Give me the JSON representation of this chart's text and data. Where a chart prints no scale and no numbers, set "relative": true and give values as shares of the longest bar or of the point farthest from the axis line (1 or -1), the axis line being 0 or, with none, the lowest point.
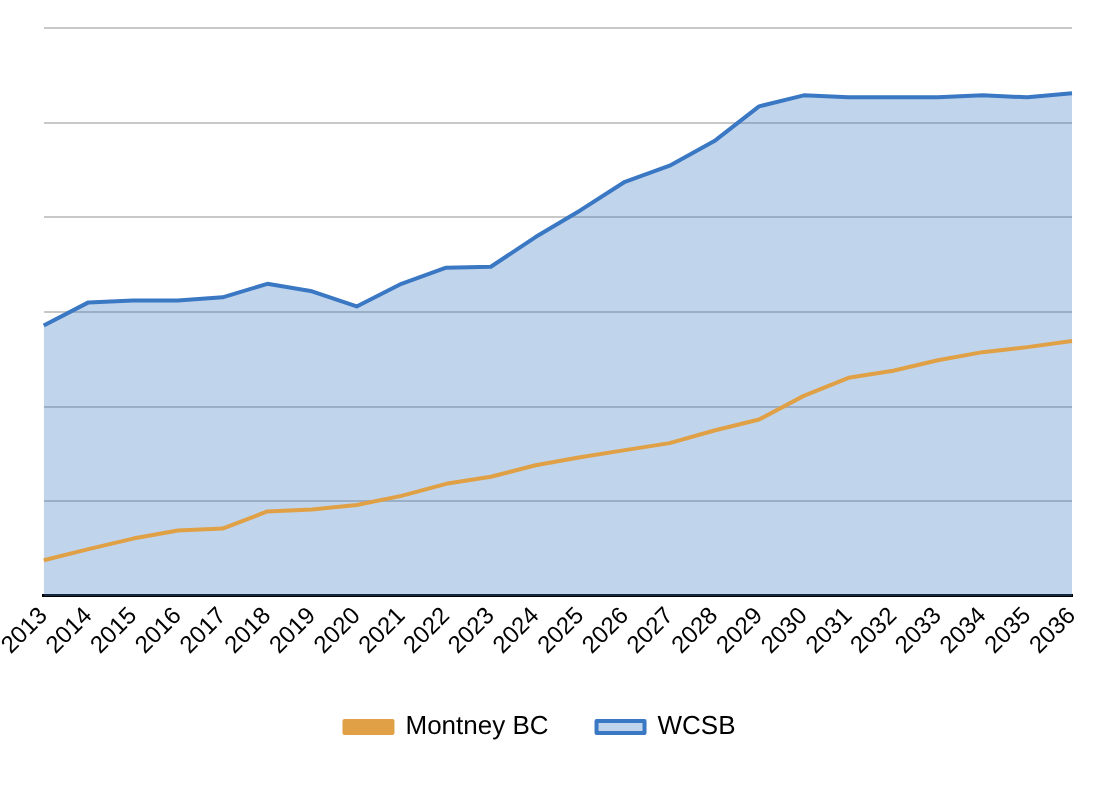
{
  "chart_data": {
    "type": "area",
    "relative": true,
    "grid": "y",
    "legend": "bottom",
    "categories": [
      "2013",
      "2014",
      "2015",
      "2016",
      "2017",
      "2018",
      "2019",
      "2020",
      "2021",
      "2022",
      "2023",
      "2024",
      "2025",
      "2026",
      "2027",
      "2028",
      "2029",
      "2030",
      "2031",
      "2032",
      "2033",
      "2034",
      "2035",
      "2036"
    ],
    "series": [
      {
        "name": "WCSB",
        "type": "area",
        "color": "#3a78c3",
        "values": [
          0.538,
          0.584,
          0.588,
          0.588,
          0.594,
          0.621,
          0.606,
          0.576,
          0.621,
          0.653,
          0.655,
          0.714,
          0.767,
          0.824,
          0.856,
          0.905,
          0.974,
          0.996,
          0.992,
          0.992,
          0.992,
          0.996,
          0.992,
          1
        ]
      },
      {
        "name": "Montney BC",
        "type": "line",
        "color": "#e0a045",
        "values": [
          0.071,
          0.093,
          0.114,
          0.13,
          0.134,
          0.168,
          0.172,
          0.181,
          0.199,
          0.223,
          0.237,
          0.26,
          0.276,
          0.29,
          0.304,
          0.329,
          0.351,
          0.398,
          0.434,
          0.448,
          0.469,
          0.485,
          0.495,
          0.507
        ]
      }
    ]
  }
}
